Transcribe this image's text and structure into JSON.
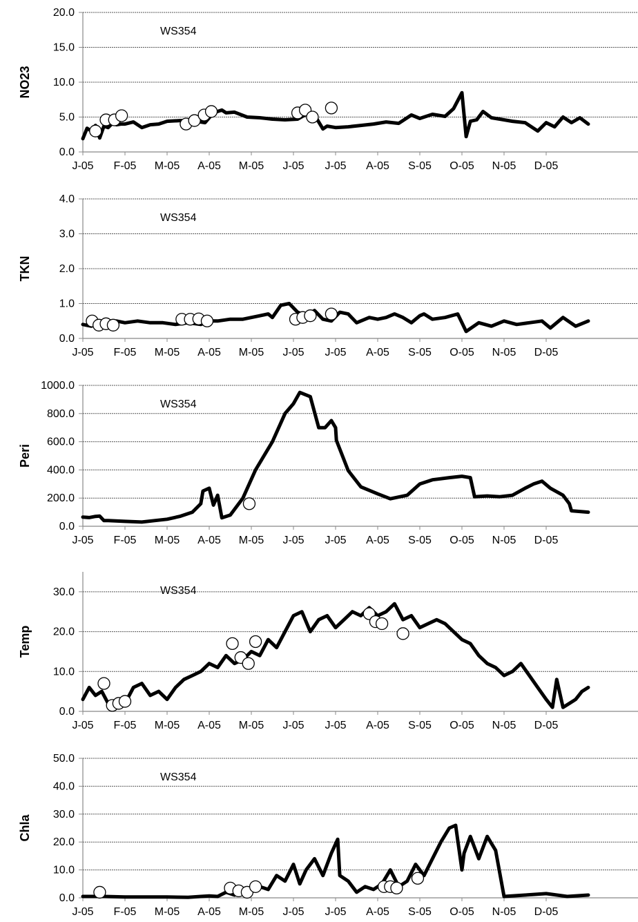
{
  "chart_data": [
    {
      "type": "line",
      "title": "",
      "panel_label": "WS354",
      "ylabel": "NO23",
      "xlabel": "",
      "ylim": [
        0,
        20
      ],
      "yticks": [
        "0.0",
        "5.0",
        "10.0",
        "15.0",
        "20.0"
      ],
      "xlim": [
        0,
        12
      ],
      "categories": [
        "J-05",
        "F-05",
        "M-05",
        "A-05",
        "M-05",
        "J-05",
        "J-05",
        "A-05",
        "S-05",
        "O-05",
        "N-05",
        "D-05"
      ],
      "grid": true,
      "series": [
        {
          "kind": "line",
          "color": "#000000",
          "x": [
            0,
            0.1,
            0.2,
            0.3,
            0.4,
            0.5,
            0.6,
            0.7,
            0.8,
            0.9,
            1.0,
            1.2,
            1.4,
            1.6,
            1.8,
            2.0,
            2.3,
            2.6,
            2.9,
            3.1,
            3.3,
            3.4,
            3.6,
            3.9,
            4.2,
            4.5,
            4.8,
            5.1,
            5.3,
            5.5,
            5.7,
            5.8,
            6.0,
            6.3,
            6.6,
            6.9,
            7.2,
            7.5,
            7.8,
            8.0,
            8.3,
            8.6,
            8.8,
            9.0,
            9.1,
            9.2,
            9.35,
            9.5,
            9.7,
            9.9,
            10.2,
            10.5,
            10.8,
            11.0,
            11.2,
            11.4,
            11.6,
            11.8,
            12.0
          ],
          "y": [
            1.9,
            3.4,
            3.0,
            3.8,
            2.0,
            3.7,
            3.5,
            4.1,
            3.9,
            4.0,
            4.0,
            4.3,
            3.5,
            3.9,
            4.0,
            4.4,
            4.5,
            4.5,
            4.2,
            5.6,
            6.0,
            5.6,
            5.7,
            5.0,
            4.9,
            4.7,
            4.6,
            4.7,
            5.4,
            5.3,
            3.3,
            3.7,
            3.5,
            3.6,
            3.8,
            4.0,
            4.3,
            4.1,
            5.3,
            4.8,
            5.4,
            5.1,
            6.2,
            8.5,
            2.2,
            4.4,
            4.6,
            5.8,
            4.9,
            4.7,
            4.4,
            4.2,
            3.0,
            4.2,
            3.6,
            5.0,
            4.2,
            4.9,
            4.0
          ]
        },
        {
          "kind": "points",
          "x": [
            0.3,
            0.55,
            0.75,
            0.92,
            2.45,
            2.65,
            2.88,
            3.05,
            5.1,
            5.28,
            5.45,
            5.9
          ],
          "y": [
            3.0,
            4.6,
            4.6,
            5.2,
            4.0,
            4.5,
            5.3,
            5.8,
            5.6,
            6.0,
            5.0,
            6.3
          ]
        }
      ]
    },
    {
      "type": "line",
      "title": "",
      "panel_label": "WS354",
      "ylabel": "TKN",
      "xlabel": "",
      "ylim": [
        0,
        4
      ],
      "yticks": [
        "0.0",
        "1.0",
        "2.0",
        "3.0",
        "4.0"
      ],
      "xlim": [
        0,
        12
      ],
      "categories": [
        "J-05",
        "F-05",
        "M-05",
        "A-05",
        "M-05",
        "J-05",
        "J-05",
        "A-05",
        "S-05",
        "O-05",
        "N-05",
        "D-05"
      ],
      "grid": true,
      "series": [
        {
          "kind": "line",
          "color": "#000000",
          "x": [
            0,
            0.2,
            0.4,
            0.6,
            0.8,
            1.0,
            1.3,
            1.6,
            1.9,
            2.2,
            2.5,
            2.8,
            3.0,
            3.2,
            3.5,
            3.8,
            4.0,
            4.2,
            4.4,
            4.5,
            4.7,
            4.9,
            5.1,
            5.3,
            5.5,
            5.7,
            5.9,
            6.1,
            6.3,
            6.5,
            6.8,
            7.0,
            7.2,
            7.4,
            7.6,
            7.8,
            8.0,
            8.1,
            8.3,
            8.6,
            8.9,
            9.1,
            9.4,
            9.7,
            10.0,
            10.3,
            10.6,
            10.9,
            11.1,
            11.4,
            11.7,
            12.0
          ],
          "y": [
            0.4,
            0.35,
            0.45,
            0.4,
            0.5,
            0.45,
            0.5,
            0.45,
            0.45,
            0.4,
            0.45,
            0.4,
            0.5,
            0.5,
            0.55,
            0.55,
            0.6,
            0.65,
            0.7,
            0.6,
            0.95,
            1.0,
            0.75,
            0.65,
            0.8,
            0.55,
            0.5,
            0.75,
            0.7,
            0.45,
            0.6,
            0.55,
            0.6,
            0.7,
            0.6,
            0.45,
            0.65,
            0.7,
            0.55,
            0.6,
            0.7,
            0.2,
            0.45,
            0.35,
            0.5,
            0.4,
            0.45,
            0.5,
            0.3,
            0.6,
            0.35,
            0.5
          ]
        },
        {
          "kind": "points",
          "x": [
            0.22,
            0.38,
            0.55,
            0.72,
            2.35,
            2.55,
            2.75,
            2.95,
            5.05,
            5.22,
            5.4,
            5.9
          ],
          "y": [
            0.5,
            0.38,
            0.42,
            0.38,
            0.55,
            0.55,
            0.56,
            0.5,
            0.55,
            0.6,
            0.65,
            0.7
          ]
        }
      ]
    },
    {
      "type": "line",
      "title": "",
      "panel_label": "WS354",
      "ylabel": "Peri",
      "xlabel": "",
      "ylim": [
        0,
        1000
      ],
      "yticks": [
        "0.0",
        "200.0",
        "400.0",
        "600.0",
        "800.0",
        "1000.0"
      ],
      "xlim": [
        0,
        12
      ],
      "categories": [
        "J-05",
        "F-05",
        "M-05",
        "A-05",
        "M-05",
        "J-05",
        "J-05",
        "A-05",
        "S-05",
        "O-05",
        "N-05",
        "D-05"
      ],
      "grid": true,
      "series": [
        {
          "kind": "line",
          "color": "#000000",
          "x": [
            0,
            0.15,
            0.3,
            0.4,
            0.5,
            0.6,
            1.0,
            1.4,
            1.7,
            2.0,
            2.3,
            2.6,
            2.8,
            2.85,
            3.0,
            3.1,
            3.2,
            3.3,
            3.5,
            3.8,
            4.1,
            4.5,
            4.8,
            5.0,
            5.15,
            5.4,
            5.6,
            5.75,
            5.9,
            6.0,
            6.02,
            6.3,
            6.6,
            7.0,
            7.3,
            7.7,
            8.0,
            8.3,
            8.7,
            9.0,
            9.2,
            9.3,
            9.6,
            9.9,
            10.2,
            10.5,
            10.7,
            10.9,
            11.1,
            11.4,
            11.55,
            11.6,
            12.0
          ],
          "y": [
            65,
            62,
            70,
            72,
            40,
            40,
            35,
            30,
            40,
            50,
            70,
            100,
            160,
            250,
            270,
            150,
            220,
            60,
            80,
            200,
            400,
            600,
            800,
            870,
            950,
            920,
            700,
            700,
            750,
            700,
            610,
            395,
            280,
            230,
            195,
            220,
            300,
            330,
            345,
            355,
            345,
            210,
            215,
            210,
            220,
            270,
            300,
            320,
            270,
            220,
            160,
            110,
            100
          ]
        },
        {
          "kind": "points",
          "x": [
            3.95
          ],
          "y": [
            160
          ]
        }
      ]
    },
    {
      "type": "line",
      "title": "",
      "panel_label": "WS354",
      "ylabel": "Temp",
      "xlabel": "",
      "ylim": [
        0,
        35
      ],
      "yticks": [
        "0.0",
        "10.0",
        "20.0",
        "30.0"
      ],
      "xlim": [
        0,
        12
      ],
      "categories": [
        "J-05",
        "F-05",
        "M-05",
        "A-05",
        "M-05",
        "J-05",
        "J-05",
        "A-05",
        "S-05",
        "O-05",
        "N-05",
        "D-05"
      ],
      "grid": true,
      "series": [
        {
          "kind": "line",
          "color": "#000000",
          "x": [
            0,
            0.15,
            0.3,
            0.45,
            0.6,
            0.75,
            0.9,
            1.05,
            1.2,
            1.4,
            1.6,
            1.8,
            2.0,
            2.2,
            2.4,
            2.6,
            2.8,
            3.0,
            3.2,
            3.4,
            3.6,
            3.8,
            4.0,
            4.2,
            4.4,
            4.6,
            4.8,
            5.0,
            5.2,
            5.4,
            5.6,
            5.8,
            6.0,
            6.2,
            6.4,
            6.6,
            6.8,
            7.0,
            7.2,
            7.4,
            7.6,
            7.8,
            8.0,
            8.2,
            8.4,
            8.6,
            8.8,
            9.0,
            9.2,
            9.4,
            9.6,
            9.8,
            10.0,
            10.2,
            10.4,
            10.6,
            10.8,
            11.0,
            11.15,
            11.25,
            11.4,
            11.55,
            11.7,
            11.85,
            12.0
          ],
          "y": [
            3,
            6,
            4,
            5,
            2,
            1,
            2,
            3,
            6,
            7,
            4,
            5,
            3,
            6,
            8,
            9,
            10,
            12,
            11,
            14,
            12,
            13,
            15,
            14,
            18,
            16,
            20,
            24,
            25,
            20,
            23,
            24,
            21,
            23,
            25,
            24,
            26,
            24,
            25,
            27,
            23,
            24,
            21,
            22,
            23,
            22,
            20,
            18,
            17,
            14,
            12,
            11,
            9,
            10,
            12,
            9,
            6,
            3,
            1,
            8,
            1,
            2,
            3,
            5,
            6
          ]
        },
        {
          "kind": "points",
          "x": [
            0.5,
            0.7,
            0.85,
            1.0,
            3.55,
            3.75,
            3.93,
            4.1,
            6.8,
            6.95,
            7.1,
            7.6
          ],
          "y": [
            7,
            1.5,
            2,
            2.5,
            17,
            13.5,
            12,
            17.5,
            24.5,
            22.5,
            22,
            19.5
          ]
        }
      ]
    },
    {
      "type": "line",
      "title": "",
      "panel_label": "WS354",
      "ylabel": "Chla",
      "xlabel": "",
      "ylim": [
        0,
        50
      ],
      "yticks": [
        "0.0",
        "10.0",
        "20.0",
        "30.0",
        "40.0",
        "50.0"
      ],
      "xlim": [
        0,
        12
      ],
      "categories": [
        "J-05",
        "F-05",
        "M-05",
        "A-05",
        "M-05",
        "J-05",
        "J-05",
        "A-05",
        "S-05",
        "O-05",
        "N-05",
        "D-05"
      ],
      "grid": true,
      "series": [
        {
          "kind": "line",
          "color": "#000000",
          "x": [
            0,
            0.5,
            1.0,
            1.5,
            2.0,
            2.5,
            2.8,
            3.0,
            3.2,
            3.4,
            3.6,
            3.8,
            4.0,
            4.2,
            4.4,
            4.6,
            4.8,
            5.0,
            5.15,
            5.3,
            5.5,
            5.7,
            5.9,
            6.05,
            6.1,
            6.3,
            6.5,
            6.7,
            6.9,
            7.1,
            7.3,
            7.5,
            7.7,
            7.9,
            8.1,
            8.3,
            8.5,
            8.7,
            8.85,
            9.0,
            9.05,
            9.2,
            9.4,
            9.6,
            9.8,
            10.0,
            10.5,
            11.0,
            11.5,
            12.0
          ],
          "y": [
            0.5,
            0.5,
            0.3,
            0.3,
            0.3,
            0.2,
            0.5,
            0.7,
            0.5,
            2.0,
            1.0,
            3.0,
            2.0,
            4.0,
            3.0,
            8.0,
            6.0,
            12.0,
            5.0,
            10.0,
            14.0,
            8.0,
            16.0,
            21.0,
            8.0,
            6.0,
            2.0,
            4.0,
            3.0,
            5.0,
            10.0,
            4.0,
            6.0,
            12.0,
            8.0,
            14.0,
            20.0,
            25.0,
            26.0,
            10.0,
            16.0,
            22.0,
            14.0,
            22.0,
            17.0,
            0.5,
            1.0,
            1.5,
            0.5,
            1.0
          ]
        },
        {
          "kind": "points",
          "x": [
            0.4,
            3.5,
            3.7,
            3.9,
            4.1,
            7.15,
            7.3,
            7.45,
            7.95
          ],
          "y": [
            2,
            3.5,
            2.5,
            2,
            4,
            4,
            4,
            3.5,
            7
          ]
        }
      ]
    }
  ]
}
